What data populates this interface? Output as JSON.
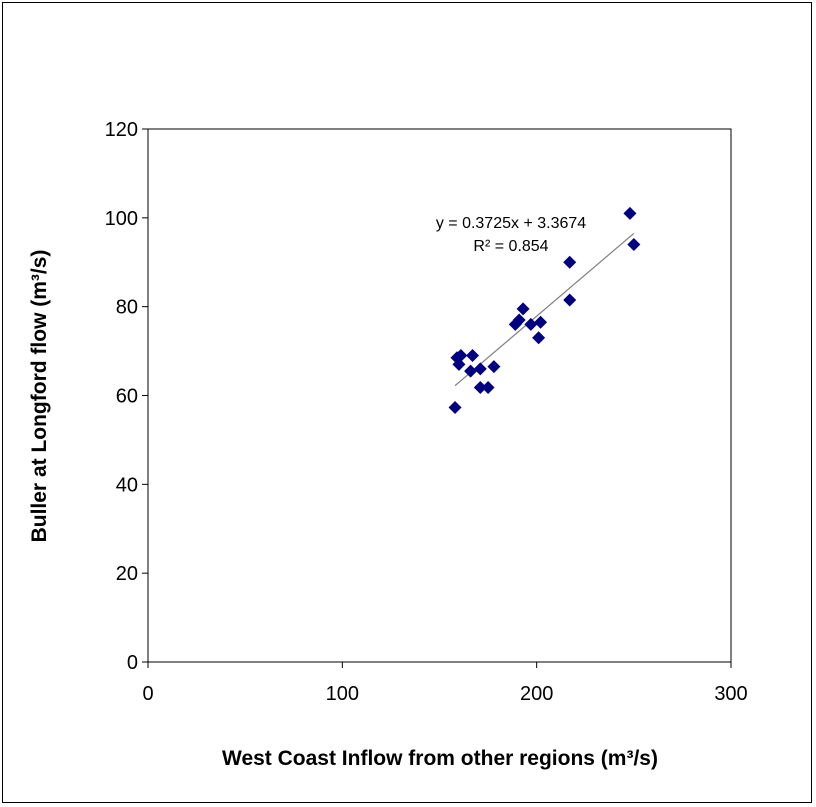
{
  "chart_data": {
    "type": "scatter",
    "title": "",
    "xlabel": "West Coast Inflow from other regions (m³/s)",
    "ylabel": "Buller at Longford flow (m³/s)",
    "xlim": [
      0,
      300
    ],
    "ylim": [
      0,
      120
    ],
    "xticks": [
      "0",
      "100",
      "200",
      "300"
    ],
    "yticks": [
      "0",
      "20",
      "40",
      "60",
      "80",
      "100",
      "120"
    ],
    "grid": false,
    "legend": "none",
    "marker_color": "#000080",
    "trendline_color": "#808080",
    "series": [
      {
        "points": [
          {
            "x": 158,
            "y": 57.3
          },
          {
            "x": 159,
            "y": 68.5
          },
          {
            "x": 160,
            "y": 67.0
          },
          {
            "x": 161,
            "y": 69.0
          },
          {
            "x": 166,
            "y": 65.5
          },
          {
            "x": 167,
            "y": 69.0
          },
          {
            "x": 171,
            "y": 66.0
          },
          {
            "x": 171,
            "y": 61.8
          },
          {
            "x": 175,
            "y": 61.8
          },
          {
            "x": 178,
            "y": 66.5
          },
          {
            "x": 189,
            "y": 76.0
          },
          {
            "x": 191,
            "y": 77.0
          },
          {
            "x": 193,
            "y": 79.5
          },
          {
            "x": 197,
            "y": 76.0
          },
          {
            "x": 201,
            "y": 73.0
          },
          {
            "x": 202,
            "y": 76.5
          },
          {
            "x": 217,
            "y": 90.0
          },
          {
            "x": 217,
            "y": 81.5
          },
          {
            "x": 248,
            "y": 101.0
          },
          {
            "x": 250,
            "y": 94.0
          }
        ]
      }
    ],
    "trendline": {
      "slope": 0.3725,
      "intercept": 3.3674,
      "x_range": [
        158,
        250
      ],
      "equation": "y = 0.3725x + 3.3674",
      "r2": "R² = 0.854"
    }
  }
}
